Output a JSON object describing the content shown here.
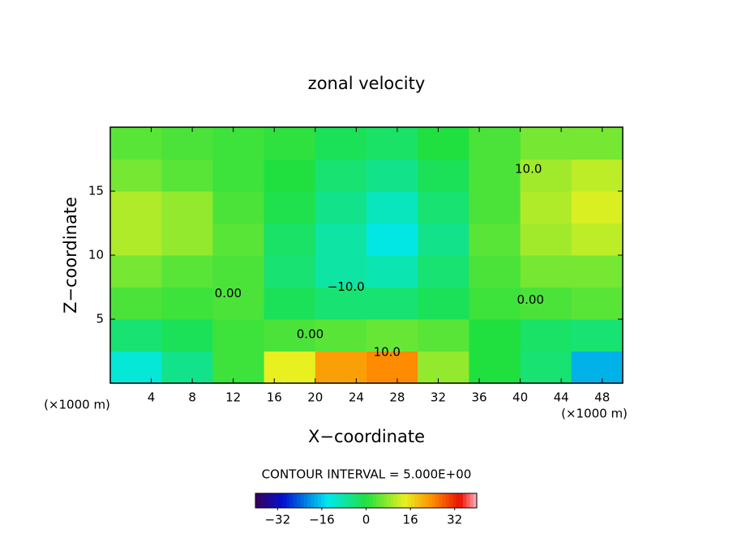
{
  "chart_data": {
    "type": "contour",
    "title": "zonal velocity",
    "x_label": "X−coordinate",
    "y_label": "Z−coordinate",
    "x_unit": "(×1000 m)",
    "y_unit": "(×1000 m)",
    "xlim": [
      0,
      50
    ],
    "ylim": [
      0,
      20
    ],
    "xticks": [
      4,
      8,
      12,
      16,
      20,
      24,
      28,
      32,
      36,
      40,
      44,
      48
    ],
    "yticks": [
      5,
      10,
      15
    ],
    "x": [
      2.5,
      7.5,
      12.5,
      17.5,
      22.5,
      27.5,
      32.5,
      37.5,
      42.5,
      47.5
    ],
    "z": [
      1.25,
      3.75,
      6.25,
      8.75,
      11.25,
      13.75,
      16.25,
      18.75
    ],
    "values": [
      [
        -12,
        -6,
        2,
        14,
        22,
        24,
        8,
        0,
        -4,
        -18
      ],
      [
        -4,
        -2,
        2,
        3,
        4,
        5,
        4,
        0,
        -3,
        -4
      ],
      [
        3,
        2,
        3,
        -2,
        -4,
        -4,
        -2,
        2,
        3,
        4
      ],
      [
        6,
        4,
        3,
        -4,
        -8,
        -9,
        -4,
        3,
        6,
        6
      ],
      [
        10,
        8,
        4,
        -3,
        -8,
        -13,
        -6,
        4,
        9,
        11
      ],
      [
        10,
        8,
        3,
        -1,
        -6,
        -10,
        -4,
        3,
        10,
        13
      ],
      [
        6,
        4,
        2,
        0,
        -4,
        -6,
        -2,
        3,
        9,
        11
      ],
      [
        4,
        3,
        2,
        1,
        -2,
        -3,
        0,
        3,
        6,
        6
      ]
    ],
    "contour_labels": [
      {
        "value": 0,
        "label": "0.00",
        "x": 11.5,
        "y": 7
      },
      {
        "value": -10,
        "label": "−10.0",
        "x": 23,
        "y": 7.5
      },
      {
        "value": 0,
        "label": "0.00",
        "x": 19.5,
        "y": 3.8
      },
      {
        "value": 10,
        "label": "10.0",
        "x": 27,
        "y": 2.4
      },
      {
        "value": 0,
        "label": "0.00",
        "x": 41,
        "y": 6.5
      },
      {
        "value": 10,
        "label": "10.0",
        "x": 40.8,
        "y": 16.7
      }
    ],
    "contour_interval_text": "CONTOUR INTERVAL = 5.000E+00",
    "colorbar_lim": [
      -40,
      40
    ],
    "colorbar_ticks": [
      {
        "value": -32,
        "label": "−32"
      },
      {
        "value": -16,
        "label": "−16"
      },
      0,
      16,
      32
    ],
    "colormap": [
      {
        "value": -40,
        "color": "#3c005a"
      },
      {
        "value": -30,
        "color": "#0010d0"
      },
      {
        "value": -14,
        "color": "#00e8f0"
      },
      {
        "value": 0,
        "color": "#20e040"
      },
      {
        "value": 14,
        "color": "#e8f020"
      },
      {
        "value": 24,
        "color": "#ff8c00"
      },
      {
        "value": 34,
        "color": "#e81000"
      },
      {
        "value": 40,
        "color": "#ffb0c0"
      }
    ]
  }
}
